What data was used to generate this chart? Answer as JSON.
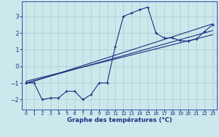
{
  "xlabel": "Graphe des températures (°C)",
  "background_color": "#cce8ec",
  "grid_color": "#aac8cc",
  "line_color": "#1a3080",
  "xlim": [
    -0.5,
    23.5
  ],
  "ylim": [
    -2.6,
    3.9
  ],
  "yticks": [
    -2,
    -1,
    0,
    1,
    2,
    3
  ],
  "xticks": [
    0,
    1,
    2,
    3,
    4,
    5,
    6,
    7,
    8,
    9,
    10,
    11,
    12,
    13,
    14,
    15,
    16,
    17,
    18,
    19,
    20,
    21,
    22,
    23
  ],
  "line1_x": [
    0,
    1,
    2,
    3,
    4,
    5,
    6,
    7,
    8,
    9,
    10,
    11,
    12,
    13,
    14,
    15,
    16,
    17,
    18,
    19,
    20,
    21,
    22,
    23
  ],
  "line1_y": [
    -1,
    -1,
    -2,
    -1.9,
    -1.9,
    -1.5,
    -1.5,
    -2,
    -1.7,
    -1,
    -1,
    1.2,
    3.0,
    3.2,
    3.4,
    3.55,
    2.0,
    1.7,
    1.7,
    1.55,
    1.5,
    1.65,
    2.1,
    2.5
  ],
  "line2_x": [
    0,
    23
  ],
  "line2_y": [
    -1.05,
    2.55
  ],
  "line3_x": [
    0,
    23
  ],
  "line3_y": [
    -1.0,
    2.15
  ],
  "line4_x": [
    0,
    23
  ],
  "line4_y": [
    -0.9,
    1.9
  ],
  "spine_color": "#3355aa"
}
